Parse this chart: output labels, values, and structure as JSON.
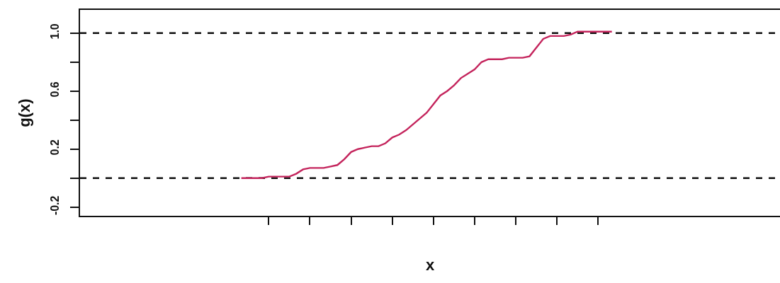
{
  "chart_data": {
    "type": "line",
    "xlabel": "x",
    "ylabel": "g(x)",
    "categories": [
      null,
      null,
      null,
      null,
      null,
      null,
      null,
      null,
      null,
      null,
      null,
      null,
      null,
      null,
      null,
      null,
      null,
      null,
      null,
      null,
      null,
      null,
      null,
      null,
      null,
      null,
      null,
      null,
      null,
      null,
      null,
      null,
      null,
      null,
      null,
      null,
      null,
      null,
      null,
      null,
      null,
      null,
      null,
      null,
      null,
      null,
      null,
      null,
      null,
      null,
      null,
      null,
      null,
      null,
      null,
      null,
      null,
      null,
      null,
      null,
      null,
      null,
      null,
      null,
      null,
      null,
      null,
      null,
      null,
      null,
      null,
      null,
      null,
      null,
      null,
      null,
      null,
      null,
      null,
      null,
      null,
      null,
      null,
      null,
      null,
      null,
      null,
      null,
      null,
      null,
      null,
      null,
      null,
      null,
      null,
      null,
      null,
      null,
      null,
      null,
      null,
      null
    ],
    "series": [
      {
        "color": "#c4245c",
        "values": [
          null,
          null,
          null,
          null,
          null,
          null,
          null,
          null,
          null,
          null,
          null,
          null,
          null,
          null,
          null,
          null,
          null,
          null,
          null,
          null,
          null,
          null,
          null,
          0.0,
          0.0,
          0.0,
          0.0,
          0.01,
          0.01,
          0.01,
          0.01,
          0.03,
          0.06,
          0.07,
          0.07,
          0.07,
          0.08,
          0.09,
          0.13,
          0.18,
          0.2,
          0.21,
          0.22,
          0.22,
          0.24,
          0.28,
          0.3,
          0.33,
          0.37,
          0.41,
          0.45,
          0.51,
          0.57,
          0.6,
          0.64,
          0.69,
          0.72,
          0.75,
          0.8,
          0.82,
          0.82,
          0.82,
          0.83,
          0.83,
          0.83,
          0.84,
          0.9,
          0.96,
          0.98,
          0.98,
          0.98,
          0.99,
          1.01,
          1.01,
          1.01,
          1.01,
          1.01,
          1.01,
          null,
          null,
          null,
          null,
          null,
          null,
          null,
          null,
          null,
          null,
          null,
          null,
          null,
          null,
          null,
          null,
          null,
          null,
          null,
          null,
          null,
          null,
          null,
          null
        ]
      }
    ],
    "ylim": [
      -0.26,
      1.16
    ],
    "yticks": [
      -0.2,
      {
        "value": 0,
        "label": null
      },
      0.2,
      {
        "value": 0.4,
        "label": null
      },
      0.6,
      {
        "value": 0.8,
        "label": null
      },
      {
        "value": 1,
        "label": "1.0"
      }
    ],
    "tick_labels": "y",
    "ref_lines": [
      {
        "axis": "y",
        "value": 0,
        "color": "#111111",
        "line_style": "dashed"
      },
      {
        "axis": "y",
        "value": 1,
        "color": "#111111",
        "line_style": "dashed"
      }
    ]
  }
}
